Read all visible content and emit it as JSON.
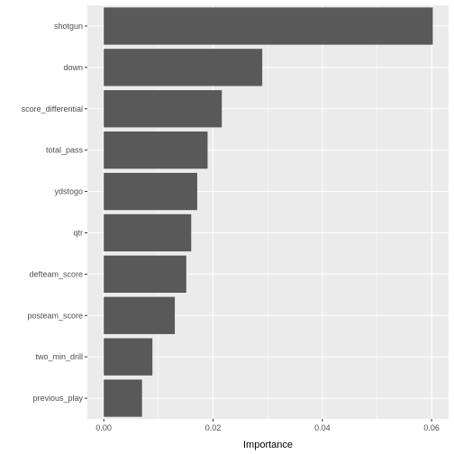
{
  "chart_data": {
    "type": "bar",
    "orientation": "horizontal",
    "categories": [
      "shotgun",
      "down",
      "score_differential",
      "total_pass",
      "ydstogo",
      "qtr",
      "defteam_score",
      "posteam_score",
      "two_min_drill",
      "previous_play"
    ],
    "values": [
      0.0602,
      0.029,
      0.0216,
      0.019,
      0.0171,
      0.016,
      0.0151,
      0.013,
      0.0089,
      0.007
    ],
    "xlabel": "Importance",
    "ylabel": "",
    "xlim": [
      -0.003,
      0.0631
    ],
    "xticks": [
      0.0,
      0.02,
      0.04,
      0.06
    ],
    "xtick_labels": [
      "0.00",
      "0.02",
      "0.04",
      "0.06"
    ],
    "grid": true,
    "legend": "none",
    "colors": {
      "bar": "#595959",
      "panel": "#ebebeb",
      "grid": "#ffffff"
    }
  }
}
